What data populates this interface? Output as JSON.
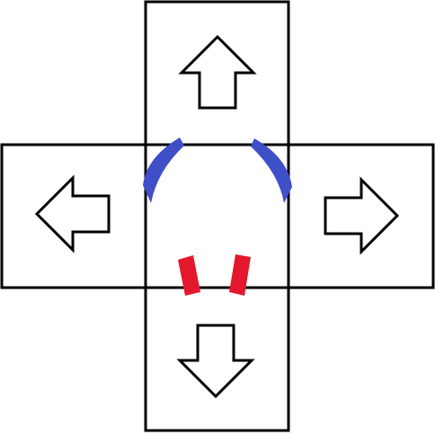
{
  "dpad": {
    "buttons": [
      {
        "direction": "up",
        "icon": "arrow-up-icon"
      },
      {
        "direction": "left",
        "icon": "arrow-left-icon"
      },
      {
        "direction": "right",
        "icon": "arrow-right-icon"
      },
      {
        "direction": "down",
        "icon": "arrow-down-icon"
      }
    ]
  },
  "colors": {
    "outline": "#000000",
    "background": "#ffffff",
    "center_arc": "#3f4fc8",
    "center_marks": "#e3182d"
  }
}
